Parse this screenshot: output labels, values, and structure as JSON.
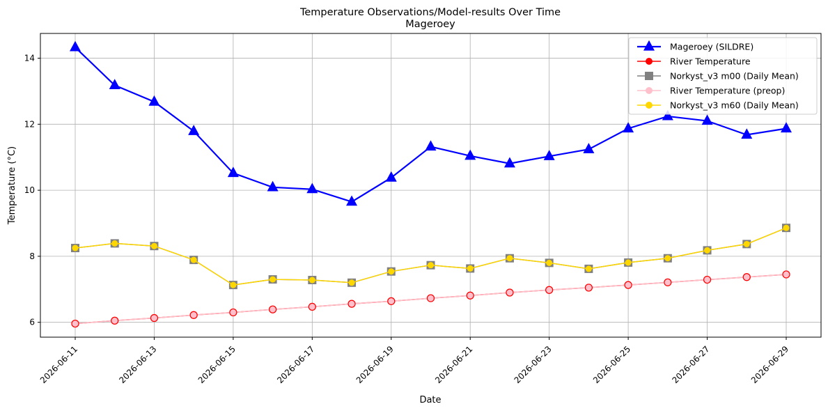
{
  "chart_data": {
    "type": "line",
    "title": "Temperature Observations/Model-results Over Time",
    "subtitle": "Mageroey",
    "xlabel": "Date",
    "ylabel": "Temperature (°C)",
    "ylim": [
      5.55,
      14.75
    ],
    "yticks": [
      6,
      8,
      10,
      12,
      14
    ],
    "grid": true,
    "legend_position": "top-right",
    "x": [
      "2026-06-11",
      "2026-06-12",
      "2026-06-13",
      "2026-06-14",
      "2026-06-15",
      "2026-06-16",
      "2026-06-17",
      "2026-06-18",
      "2026-06-19",
      "2026-06-20",
      "2026-06-21",
      "2026-06-22",
      "2026-06-23",
      "2026-06-24",
      "2026-06-25",
      "2026-06-26",
      "2026-06-27",
      "2026-06-28",
      "2026-06-29"
    ],
    "xticks": [
      "2026-06-11",
      "2026-06-13",
      "2026-06-15",
      "2026-06-17",
      "2026-06-19",
      "2026-06-21",
      "2026-06-23",
      "2026-06-25",
      "2026-06-27",
      "2026-06-29"
    ],
    "series": [
      {
        "name": "Mageroey (SILDRE)",
        "color": "#0000ff",
        "marker": "triangle",
        "values": [
          14.33,
          13.18,
          12.68,
          11.79,
          10.52,
          10.09,
          10.03,
          9.65,
          10.38,
          11.32,
          11.04,
          10.81,
          11.03,
          11.24,
          11.87,
          12.24,
          12.1,
          11.68,
          11.87
        ]
      },
      {
        "name": "River Temperature",
        "color": "#ff0000",
        "marker": "circle",
        "values": [
          5.96,
          6.05,
          6.13,
          6.22,
          6.3,
          6.39,
          6.47,
          6.56,
          6.64,
          6.73,
          6.81,
          6.9,
          6.98,
          7.05,
          7.13,
          7.21,
          7.29,
          7.37,
          7.45
        ]
      },
      {
        "name": "Norkyst_v3 m00 (Daily Mean)",
        "color": "#808080",
        "marker": "square",
        "values": [
          8.25,
          8.39,
          8.31,
          7.89,
          7.13,
          7.3,
          7.28,
          7.2,
          7.54,
          7.73,
          7.63,
          7.94,
          7.8,
          7.62,
          7.81,
          7.94,
          8.18,
          8.37,
          8.86
        ]
      },
      {
        "name": "River Temperature (preop)",
        "color": "#ffc0cb",
        "marker": "circle",
        "values": [
          5.96,
          6.05,
          6.13,
          6.22,
          6.3,
          6.39,
          6.47,
          6.56,
          6.64,
          6.73,
          6.81,
          6.9,
          6.98,
          7.05,
          7.13,
          7.21,
          7.29,
          7.37,
          7.45
        ]
      },
      {
        "name": "Norkyst_v3 m60 (Daily Mean)",
        "color": "#ffd700",
        "marker": "circle",
        "values": [
          8.25,
          8.39,
          8.31,
          7.89,
          7.13,
          7.3,
          7.28,
          7.2,
          7.54,
          7.73,
          7.63,
          7.94,
          7.8,
          7.62,
          7.81,
          7.94,
          8.18,
          8.37,
          8.86
        ]
      }
    ]
  }
}
